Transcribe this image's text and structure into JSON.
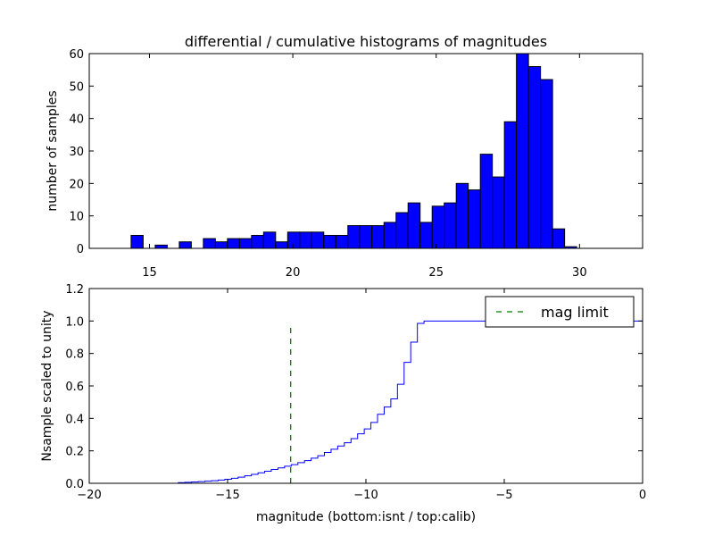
{
  "chart_data": [
    {
      "type": "bar",
      "title": "differential / cumulative histograms of magnitudes",
      "xlabel": "",
      "ylabel": "number of samples",
      "xlim": [
        12.9,
        32.2
      ],
      "ylim": [
        0,
        60
      ],
      "xticks": [
        15,
        20,
        25,
        30
      ],
      "yticks": [
        0,
        10,
        20,
        30,
        40,
        50,
        60
      ],
      "bar_color": "#0000ff",
      "bin_width": 0.42,
      "bin_start": 14.36,
      "values": [
        4,
        0,
        1,
        0,
        2,
        0,
        3,
        2,
        3,
        3,
        4,
        5,
        2,
        5,
        5,
        5,
        4,
        4,
        7,
        7,
        7,
        8,
        11,
        14,
        8,
        13,
        14,
        20,
        18,
        29,
        22,
        39,
        60,
        56,
        52,
        6,
        0.5
      ]
    },
    {
      "type": "line",
      "title": "",
      "xlabel": "magnitude (bottom:isnt / top:calib)",
      "ylabel": "Nsample scaled to unity",
      "xlim": [
        -20,
        0
      ],
      "ylim": [
        0,
        1.2
      ],
      "xticks": [
        -20,
        -15,
        -10,
        -5,
        0
      ],
      "xtick_labels": [
        "−20",
        "−15",
        "−10",
        "−5",
        "0"
      ],
      "yticks": [
        0,
        0.2,
        0.4,
        0.6,
        0.8,
        1.0,
        1.2
      ],
      "ytick_labels": [
        "0.0",
        "0.2",
        "0.4",
        "0.6",
        "0.8",
        "1.0",
        "1.2"
      ],
      "series": [
        {
          "name": "",
          "style": "step",
          "color": "#0000ff",
          "x": [
            -20,
            -16.78,
            -16.54,
            -16.3,
            -16.06,
            -15.82,
            -15.58,
            -15.34,
            -15.1,
            -14.86,
            -14.62,
            -14.38,
            -14.14,
            -13.9,
            -13.66,
            -13.42,
            -13.18,
            -12.94,
            -12.7,
            -12.46,
            -12.22,
            -11.98,
            -11.74,
            -11.5,
            -11.26,
            -11.02,
            -10.78,
            -10.54,
            -10.3,
            -10.06,
            -9.82,
            -9.58,
            -9.34,
            -9.1,
            -8.86,
            -8.62,
            -8.38,
            -8.14,
            -7.9,
            0
          ],
          "y": [
            0,
            0.004,
            0.006,
            0.008,
            0.01,
            0.013,
            0.016,
            0.02,
            0.025,
            0.031,
            0.038,
            0.046,
            0.055,
            0.065,
            0.074,
            0.085,
            0.095,
            0.105,
            0.115,
            0.127,
            0.14,
            0.155,
            0.17,
            0.19,
            0.21,
            0.23,
            0.25,
            0.275,
            0.305,
            0.335,
            0.375,
            0.425,
            0.47,
            0.52,
            0.61,
            0.745,
            0.87,
            0.985,
            1.0,
            1.0
          ]
        },
        {
          "name": "mag limit",
          "style": "dashed",
          "color": "#008000",
          "x": [
            -12.72,
            -12.72
          ],
          "y": [
            0,
            0.97
          ]
        }
      ],
      "legend": {
        "position": "top-right",
        "entries": [
          "mag limit"
        ]
      }
    }
  ]
}
